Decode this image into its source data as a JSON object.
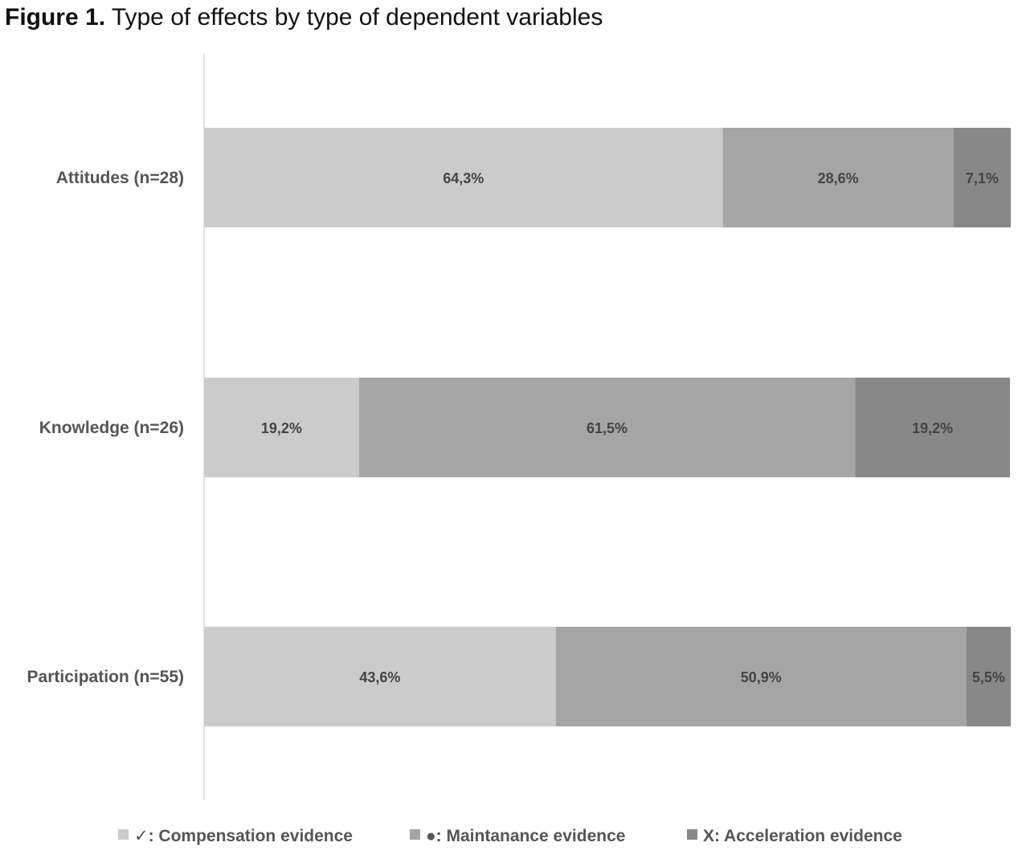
{
  "figure": {
    "label": "Figure 1.",
    "title": "Type of effects by type of dependent variables"
  },
  "chart_data": {
    "type": "bar",
    "orientation": "horizontal",
    "stacked": "100%",
    "categories": [
      "Attitudes (n=28)",
      "Knowledge (n=26)",
      "Participation (n=55)"
    ],
    "series": [
      {
        "name": "✓: Compensation evidence",
        "color": "#cbcbcb",
        "values": [
          64.3,
          19.2,
          43.6
        ],
        "labels": [
          "64,3%",
          "19,2%",
          "43,6%"
        ]
      },
      {
        "name": "●: Maintanance evidence",
        "color": "#a5a5a5",
        "values": [
          28.6,
          61.5,
          50.9
        ],
        "labels": [
          "28,6%",
          "61,5%",
          "50,9%"
        ]
      },
      {
        "name": "X: Acceleration evidence",
        "color": "#888888",
        "values": [
          7.1,
          19.2,
          5.5
        ],
        "labels": [
          "7,1%",
          "19,2%",
          "5,5%"
        ]
      }
    ],
    "xlim": [
      0,
      100
    ],
    "grid": false,
    "legend_position": "bottom"
  }
}
